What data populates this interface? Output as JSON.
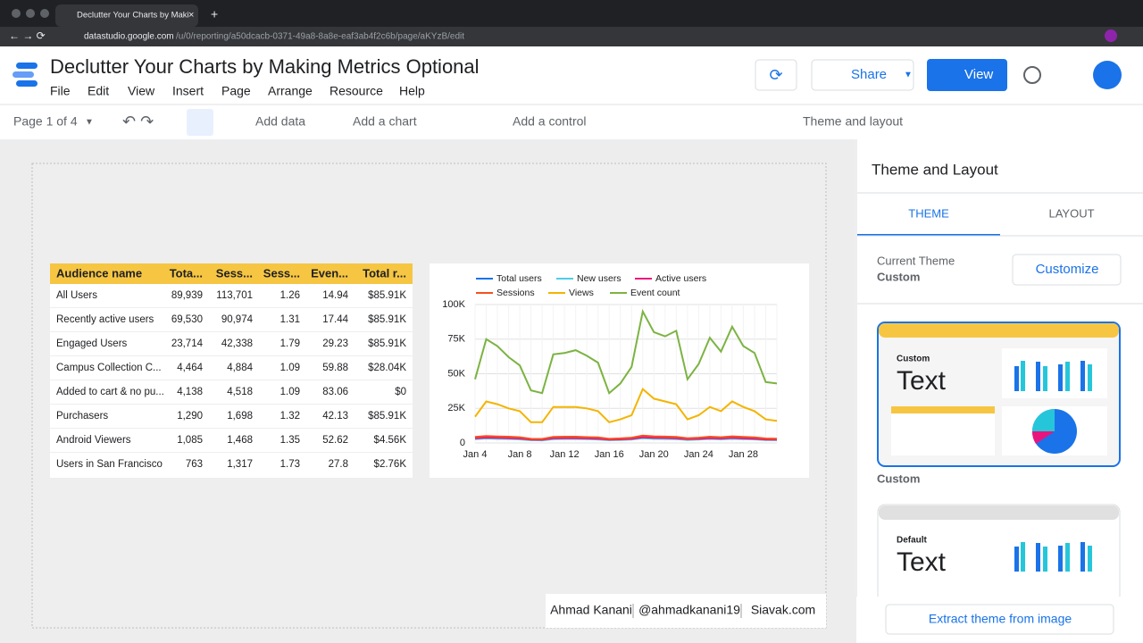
{
  "browser": {
    "tab_title": "Declutter Your Charts by Maki",
    "url_host": "datastudio.google.com",
    "url_path": "/u/0/reporting/a50dcacb-0371-49a8-8a8e-eaf3ab4f2c6b/page/aKYzB/edit"
  },
  "header": {
    "title": "Declutter Your Charts by Making Metrics Optional",
    "menus": [
      "File",
      "Edit",
      "View",
      "Insert",
      "Page",
      "Arrange",
      "Resource",
      "Help"
    ],
    "share": "Share",
    "view": "View"
  },
  "toolbar": {
    "page": "Page 1 of 4",
    "add_data": "Add data",
    "add_chart": "Add a chart",
    "add_control": "Add a control",
    "theme": "Theme and layout"
  },
  "table": {
    "headers": [
      "Audience name",
      "Tota...",
      "Sess...",
      "Sess...",
      "Even...",
      "Total r..."
    ],
    "rows": [
      [
        "All Users",
        "89,939",
        "113,701",
        "1.26",
        "14.94",
        "$85.91K"
      ],
      [
        "Recently active users",
        "69,530",
        "90,974",
        "1.31",
        "17.44",
        "$85.91K"
      ],
      [
        "Engaged Users",
        "23,714",
        "42,338",
        "1.79",
        "29.23",
        "$85.91K"
      ],
      [
        "Campus Collection C...",
        "4,464",
        "4,884",
        "1.09",
        "59.88",
        "$28.04K"
      ],
      [
        "Added to cart & no pu...",
        "4,138",
        "4,518",
        "1.09",
        "83.06",
        "$0"
      ],
      [
        "Purchasers",
        "1,290",
        "1,698",
        "1.32",
        "42.13",
        "$85.91K"
      ],
      [
        "Android Viewers",
        "1,085",
        "1,468",
        "1.35",
        "52.62",
        "$4.56K"
      ],
      [
        "Users in San Francisco",
        "763",
        "1,317",
        "1.73",
        "27.8",
        "$2.76K"
      ]
    ]
  },
  "chart_data": {
    "type": "line",
    "categories": [
      "Jan 4",
      null,
      null,
      null,
      "Jan 8",
      null,
      null,
      null,
      "Jan 12",
      null,
      null,
      null,
      "Jan 16",
      null,
      null,
      null,
      "Jan 20",
      null,
      null,
      null,
      "Jan 24",
      null,
      null,
      null,
      "Jan 28",
      null,
      null,
      null
    ],
    "ylim": [
      0,
      100000
    ],
    "yticks": [
      0,
      {
        "value": 25000,
        "label": "25K"
      },
      {
        "value": 50000,
        "label": "50K"
      },
      {
        "value": 75000,
        "label": "75K"
      },
      {
        "value": 100000,
        "label": "100K"
      }
    ],
    "grid": true,
    "series": [
      {
        "name": "Total users",
        "color": "#1a73e8",
        "values": [
          3500,
          4000,
          3800,
          3600,
          3300,
          2500,
          2400,
          3500,
          3600,
          3600,
          3400,
          3200,
          2500,
          2700,
          3100,
          4200,
          3800,
          3700,
          3500,
          2800,
          3100,
          3600,
          3300,
          3800,
          3400,
          3200,
          2600,
          2500
        ]
      },
      {
        "name": "New users",
        "color": "#4ecde6",
        "values": [
          2800,
          3200,
          3000,
          2900,
          2600,
          2000,
          1900,
          2800,
          2900,
          2900,
          2700,
          2500,
          2000,
          2200,
          2500,
          3400,
          3000,
          2900,
          2800,
          2200,
          2500,
          2900,
          2600,
          3000,
          2700,
          2600,
          2100,
          2000
        ]
      },
      {
        "name": "Active users",
        "color": "#e8157f",
        "values": [
          3400,
          3900,
          3700,
          3500,
          3200,
          2400,
          2300,
          3400,
          3500,
          3500,
          3300,
          3100,
          2400,
          2600,
          3000,
          4100,
          3700,
          3600,
          3400,
          2700,
          3000,
          3500,
          3200,
          3700,
          3300,
          3100,
          2500,
          2400
        ]
      },
      {
        "name": "Sessions",
        "color": "#f4511e",
        "values": [
          4300,
          5000,
          4700,
          4500,
          4100,
          3000,
          2900,
          4400,
          4500,
          4500,
          4200,
          4000,
          3000,
          3300,
          3800,
          5300,
          4800,
          4600,
          4400,
          3400,
          3800,
          4500,
          4100,
          4800,
          4300,
          4000,
          3200,
          3100
        ]
      },
      {
        "name": "Views",
        "color": "#f4b400",
        "values": [
          19000,
          30000,
          28000,
          25000,
          23000,
          15000,
          15000,
          26000,
          26000,
          26000,
          25000,
          23000,
          15000,
          17000,
          20000,
          39000,
          32000,
          30000,
          28000,
          17000,
          20000,
          26000,
          23000,
          30000,
          26000,
          23000,
          17000,
          16000
        ]
      },
      {
        "name": "Event count",
        "color": "#7cb342",
        "values": [
          46000,
          75000,
          70000,
          62000,
          56000,
          38000,
          36000,
          64000,
          65000,
          67000,
          63000,
          58000,
          36000,
          43000,
          55000,
          95000,
          80000,
          77000,
          81000,
          46000,
          57000,
          76000,
          66000,
          84000,
          70000,
          65000,
          44000,
          43000
        ]
      }
    ]
  },
  "footer": [
    "Ahmad Kanani",
    "@ahmadkanani19",
    "Siavak.com"
  ],
  "panel": {
    "title": "Theme and Layout",
    "tabs": [
      "THEME",
      "LAYOUT"
    ],
    "current_label": "Current Theme",
    "current_value": "Custom",
    "customize": "Customize",
    "themes": [
      {
        "heading": "Custom",
        "sample": "Text",
        "caption": "Custom"
      },
      {
        "heading": "Default",
        "sample": "Text"
      }
    ],
    "extract": "Extract theme from image"
  }
}
